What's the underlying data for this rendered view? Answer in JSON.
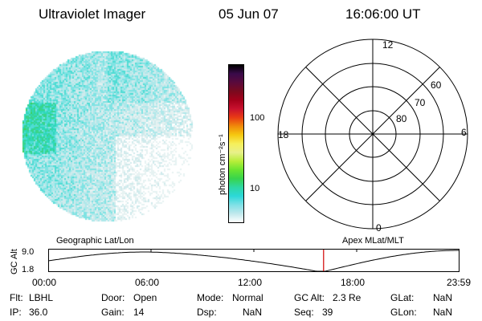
{
  "header": {
    "instrument": "Ultraviolet Imager",
    "date": "05 Jun 07",
    "time": "16:06:00 UT"
  },
  "image_panel": {
    "label": "Geographic Lat/Lon"
  },
  "colorbar": {
    "unit_label": "photon cm⁻²s⁻¹",
    "ticks": [
      "100",
      "10"
    ],
    "colors": [
      "#000000",
      "#3a0a4a",
      "#5a0a3c",
      "#7a0a1e",
      "#a3001a",
      "#c8102e",
      "#e83a14",
      "#f08a0a",
      "#f6c810",
      "#f6f05a",
      "#e8f08a",
      "#b8ee3a",
      "#6ae430",
      "#38d44c",
      "#2ed8a4",
      "#2cd8d8",
      "#7ee0e6",
      "#bfe8ec",
      "#ffffff"
    ]
  },
  "polar_plot": {
    "label": "Apex MLat/MLT",
    "hour_labels": [
      "12",
      "18",
      "6",
      "0"
    ],
    "lat_labels": [
      "60",
      "70",
      "80"
    ]
  },
  "timeline": {
    "axis_label": "GC Alt",
    "ymax": "9.0",
    "ymin": "1.8",
    "time_ticks": [
      "00:00",
      "06:00",
      "12:00",
      "18:00",
      "23:59"
    ],
    "current_time_fraction": 0.6708
  },
  "info": {
    "flt_label": "Flt:",
    "flt_value": "LBHL",
    "ip_label": "IP:",
    "ip_value": "36.0",
    "door_label": "Door:",
    "door_value": "Open",
    "gain_label": "Gain:",
    "gain_value": "14",
    "mode_label": "Mode:",
    "mode_value": "Normal",
    "dsp_label": "Dsp:",
    "dsp_value": "NaN",
    "gcalt_label": "GC Alt:",
    "gcalt_value": "2.3 Re",
    "seq_label": "Seq:",
    "seq_value": "39",
    "glat_label": "GLat:",
    "glat_value": "NaN",
    "glon_label": "GLon:",
    "glon_value": "NaN"
  }
}
